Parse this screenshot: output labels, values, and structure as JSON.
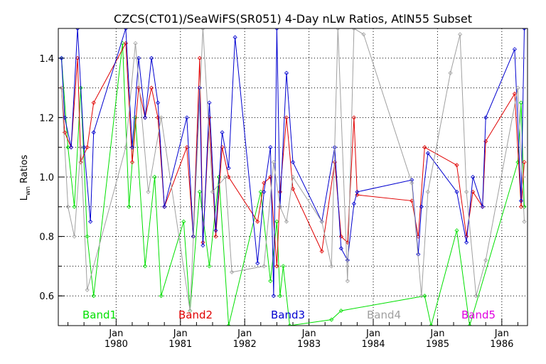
{
  "chart_data": {
    "type": "line",
    "title": "CZCS(CT01)/SeaWiFS(SR051) 4-Day nLw Ratios, AtlN55 Subset",
    "ylabel_main": "L",
    "ylabel_sub": "wn",
    "ylabel_rest": " Ratios",
    "xlabel": "",
    "xlim": [
      1979.1,
      1986.4
    ],
    "ylim": [
      0.5,
      1.5
    ],
    "yticks": [
      0.6,
      0.8,
      1.0,
      1.2,
      1.4
    ],
    "ytick_labels": [
      "0.6",
      "0.8",
      "1.0",
      "1.2",
      "1.4"
    ],
    "xticks": [
      {
        "x": 1980.0,
        "month": "Jan",
        "year": "1980"
      },
      {
        "x": 1981.0,
        "month": "Jan",
        "year": "1981"
      },
      {
        "x": 1982.0,
        "month": "Jan",
        "year": "1982"
      },
      {
        "x": 1983.0,
        "month": "Jan",
        "year": "1983"
      },
      {
        "x": 1984.0,
        "month": "Jan",
        "year": "1984"
      },
      {
        "x": 1985.0,
        "month": "Jan",
        "year": "1985"
      },
      {
        "x": 1986.0,
        "month": "Jan",
        "year": "1986"
      }
    ],
    "grid": "dotted",
    "legend_placement": "bottom inside plot",
    "series": [
      {
        "name": "Band1",
        "color": "#00e000",
        "x": [
          1979.15,
          1979.25,
          1979.35,
          1979.45,
          1979.55,
          1979.65,
          1980.1,
          1980.2,
          1980.3,
          1980.45,
          1980.6,
          1980.7,
          1981.05,
          1981.15,
          1981.3,
          1981.45,
          1981.6,
          1981.75,
          1982.25,
          1982.4,
          1982.5,
          1982.55,
          1982.6,
          1982.7,
          1983.35,
          1983.5,
          1984.8,
          1984.9,
          1985.3,
          1985.5,
          1986.25,
          1986.3,
          1986.35
        ],
        "y": [
          1.4,
          1.1,
          0.9,
          1.3,
          0.8,
          0.6,
          1.45,
          0.9,
          1.2,
          0.7,
          1.0,
          0.6,
          0.85,
          0.55,
          0.95,
          0.7,
          1.0,
          0.5,
          0.95,
          0.65,
          0.85,
          0.6,
          0.7,
          0.5,
          0.52,
          0.55,
          0.6,
          0.5,
          0.82,
          0.5,
          1.05,
          1.25,
          0.9
        ]
      },
      {
        "name": "Band2",
        "color": "#e00000",
        "x": [
          1979.15,
          1979.2,
          1979.3,
          1979.4,
          1979.45,
          1979.55,
          1979.65,
          1980.15,
          1980.25,
          1980.35,
          1980.45,
          1980.55,
          1980.65,
          1980.75,
          1981.1,
          1981.2,
          1981.3,
          1981.35,
          1981.45,
          1981.55,
          1981.65,
          1981.75,
          1982.2,
          1982.3,
          1982.4,
          1982.5,
          1982.55,
          1982.65,
          1982.75,
          1983.2,
          1983.4,
          1983.5,
          1983.6,
          1983.7,
          1983.75,
          1984.6,
          1984.7,
          1984.8,
          1985.3,
          1985.45,
          1985.55,
          1985.7,
          1985.75,
          1986.2,
          1986.3,
          1986.35
        ],
        "y": [
          1.3,
          1.15,
          1.1,
          1.4,
          1.05,
          1.1,
          1.25,
          1.45,
          1.05,
          1.3,
          1.2,
          1.3,
          1.2,
          0.9,
          1.1,
          0.8,
          1.4,
          0.78,
          1.2,
          0.8,
          1.1,
          1.0,
          0.85,
          0.98,
          1.0,
          0.7,
          0.95,
          1.2,
          0.96,
          0.75,
          1.05,
          0.8,
          0.78,
          1.2,
          0.94,
          0.92,
          0.8,
          1.1,
          1.04,
          0.8,
          0.95,
          0.9,
          1.12,
          1.28,
          0.9,
          1.05
        ]
      },
      {
        "name": "Band3",
        "color": "#0000d0",
        "x": [
          1979.15,
          1979.2,
          1979.3,
          1979.4,
          1979.5,
          1979.6,
          1979.65,
          1980.15,
          1980.25,
          1980.35,
          1980.45,
          1980.55,
          1980.65,
          1980.75,
          1981.1,
          1981.2,
          1981.3,
          1981.35,
          1981.45,
          1981.55,
          1981.65,
          1981.75,
          1981.85,
          1982.2,
          1982.3,
          1982.4,
          1982.45,
          1982.5,
          1982.55,
          1982.65,
          1982.75,
          1983.2,
          1983.4,
          1983.5,
          1983.6,
          1983.7,
          1983.75,
          1984.6,
          1984.7,
          1984.75,
          1984.85,
          1985.3,
          1985.45,
          1985.55,
          1985.7,
          1985.75,
          1986.2,
          1986.3,
          1986.35
        ],
        "y": [
          1.4,
          1.2,
          1.1,
          1.5,
          1.1,
          0.85,
          1.15,
          1.5,
          1.1,
          1.4,
          1.2,
          1.4,
          1.25,
          0.9,
          1.2,
          0.8,
          1.3,
          0.77,
          1.25,
          0.82,
          1.15,
          1.03,
          1.47,
          0.71,
          0.95,
          1.1,
          0.6,
          1.5,
          0.9,
          1.35,
          1.05,
          0.85,
          1.1,
          0.76,
          0.72,
          0.91,
          0.95,
          0.99,
          0.74,
          0.9,
          1.08,
          0.95,
          0.78,
          1.0,
          0.9,
          1.2,
          1.43,
          0.92,
          1.5
        ]
      },
      {
        "name": "Band4",
        "color": "#a0a0a0",
        "x": [
          1979.15,
          1979.25,
          1979.35,
          1979.45,
          1979.55,
          1980.15,
          1980.3,
          1980.5,
          1980.7,
          1981.15,
          1981.35,
          1981.5,
          1981.7,
          1981.8,
          1982.3,
          1982.45,
          1982.55,
          1982.65,
          1982.75,
          1983.2,
          1983.35,
          1983.45,
          1983.6,
          1983.7,
          1983.85,
          1984.6,
          1984.75,
          1984.85,
          1985.2,
          1985.35,
          1985.45,
          1985.6,
          1985.75,
          1986.25,
          1986.35
        ],
        "y": [
          1.3,
          0.9,
          0.8,
          1.1,
          0.62,
          1.1,
          1.45,
          0.95,
          1.2,
          0.55,
          1.5,
          0.95,
          1.0,
          0.68,
          0.7,
          1.05,
          0.9,
          0.85,
          1.0,
          0.85,
          0.7,
          1.5,
          0.65,
          1.5,
          1.48,
          0.98,
          0.6,
          0.95,
          1.35,
          1.48,
          0.95,
          0.6,
          0.72,
          1.3,
          0.85
        ]
      },
      {
        "name": "Band5",
        "color": "#e000e0",
        "x": [],
        "y": []
      }
    ]
  }
}
